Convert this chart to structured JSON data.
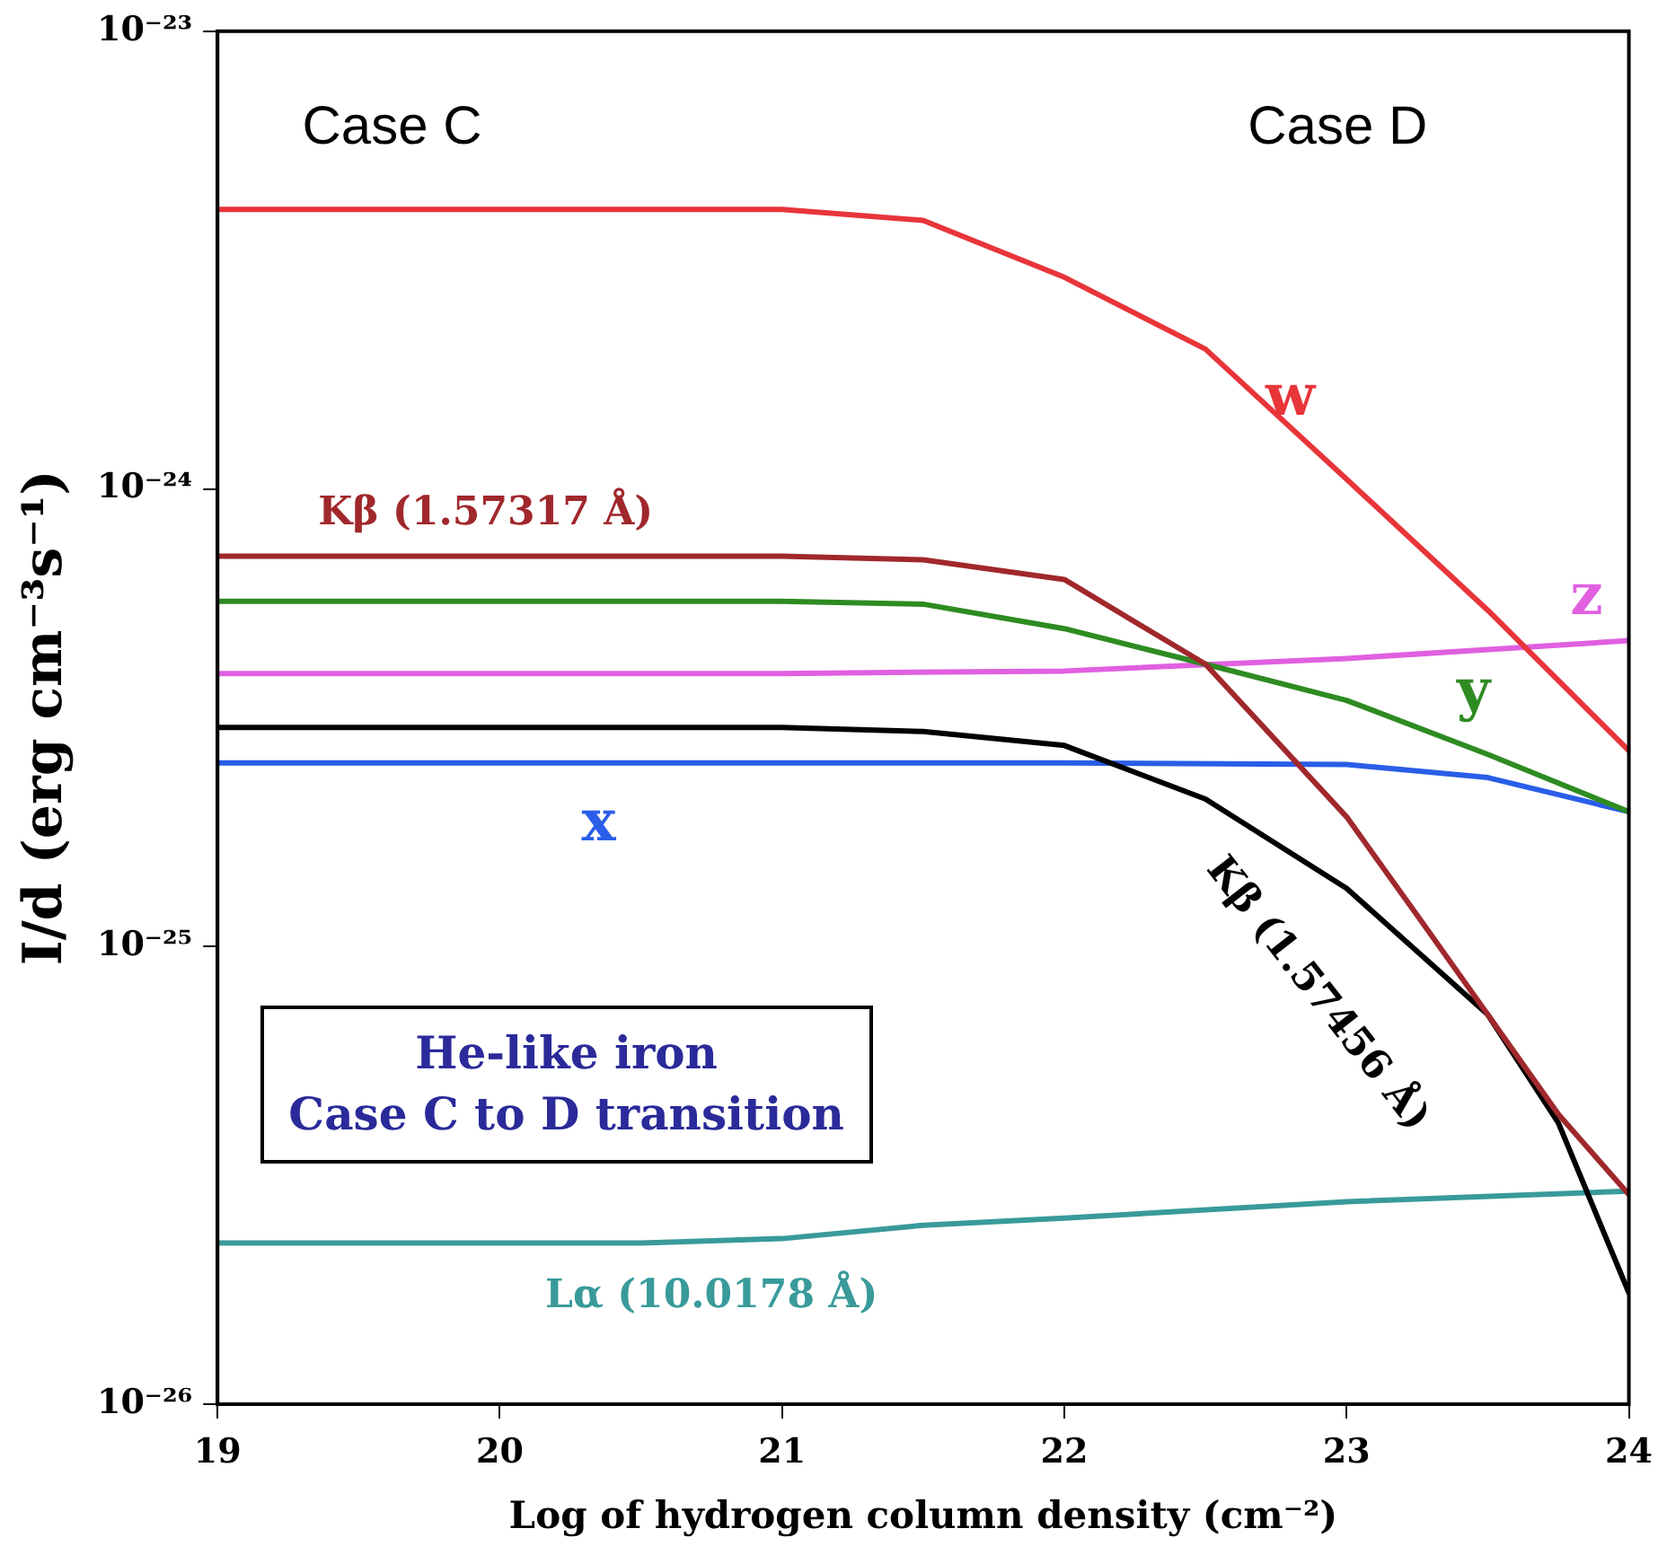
{
  "chart_data": {
    "type": "line",
    "xlabel": "Log of hydrogen column density (cm⁻²)",
    "ylabel": "I/d (erg cm⁻³s⁻¹)",
    "log": "y",
    "grid": false,
    "legend": false,
    "marker": "none",
    "line_style": "solid",
    "xlim": [
      19,
      24
    ],
    "xticks": [
      19,
      20,
      21,
      22,
      23,
      24
    ],
    "ylim": [
      1e-26,
      1e-23
    ],
    "yticks": [
      {
        "value": 1e-26,
        "label": "10⁻²⁶"
      },
      {
        "value": 1e-25,
        "label": "10⁻²⁵"
      },
      {
        "value": 1e-24,
        "label": "10⁻²⁴"
      },
      {
        "value": 1e-23,
        "label": "10⁻²³"
      }
    ],
    "series": [
      {
        "color": "#e8353a",
        "x": [
          19,
          20,
          21,
          21.5,
          22,
          22.5,
          23,
          23.5,
          24
        ],
        "values": [
          4.08e-24,
          4.08e-24,
          4.08e-24,
          3.86e-24,
          2.9e-24,
          2.02e-24,
          1.05e-24,
          5.43e-25,
          2.68e-25
        ]
      },
      {
        "color": "#a0282c",
        "x": [
          19,
          21,
          21.5,
          22,
          22.5,
          23,
          23.25,
          23.5,
          23.75,
          24
        ],
        "values": [
          7.13e-25,
          7.13e-25,
          7e-25,
          6.34e-25,
          4.14e-25,
          1.92e-25,
          1.17e-25,
          7.1e-26,
          4.3e-26,
          2.87e-26
        ]
      },
      {
        "color": "#2e8b22",
        "x": [
          19,
          21,
          21.5,
          22,
          22.5,
          23,
          23.5,
          24
        ],
        "values": [
          5.68e-25,
          5.68e-25,
          5.6e-25,
          4.95e-25,
          4.14e-25,
          3.45e-25,
          2.63e-25,
          1.97e-25
        ]
      },
      {
        "color": "#e060e0",
        "x": [
          19,
          21,
          22,
          23,
          24
        ],
        "values": [
          3.95e-25,
          3.95e-25,
          4e-25,
          4.26e-25,
          4.66e-25
        ]
      },
      {
        "color": "#000000",
        "x": [
          19,
          21,
          21.5,
          22,
          22.5,
          23,
          23.5,
          23.75,
          24
        ],
        "values": [
          3.01e-25,
          3.01e-25,
          2.95e-25,
          2.75e-25,
          2.1e-25,
          1.34e-25,
          7.1e-26,
          4.12e-26,
          1.75e-26
        ]
      },
      {
        "color": "#2a5de8",
        "x": [
          19,
          22,
          23,
          23.5,
          24
        ],
        "values": [
          2.52e-25,
          2.52e-25,
          2.5e-25,
          2.34e-25,
          1.97e-25
        ]
      },
      {
        "color": "#3a9a9a",
        "x": [
          19,
          20.5,
          21,
          21.5,
          22,
          23,
          24
        ],
        "values": [
          2.25e-26,
          2.25e-26,
          2.3e-26,
          2.46e-26,
          2.55e-26,
          2.77e-26,
          2.92e-26
        ]
      }
    ],
    "annotations": [
      "Case C",
      "Case D",
      "He-like iron\nCase C to D transition",
      "w",
      "Kβ  (1.57317 Å)",
      "z",
      "y",
      "x",
      "Kβ  (1.57456 Å)",
      "Lα  (10.0178 Å)"
    ]
  }
}
